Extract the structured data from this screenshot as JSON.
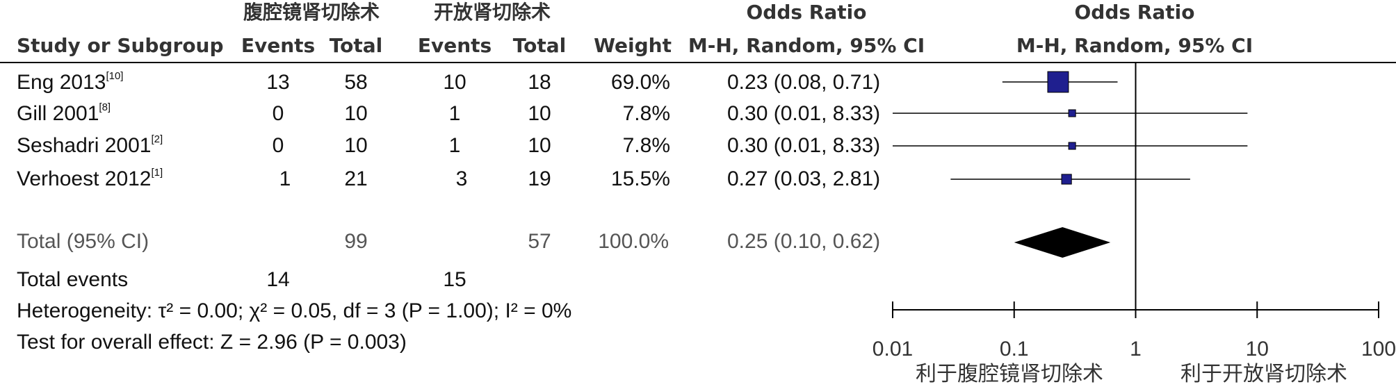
{
  "header": {
    "group1": "腹腔镜肾切除术",
    "group2": "开放肾切除术",
    "odds_ratio_col": "Odds Ratio",
    "odds_ratio_plot": "Odds Ratio",
    "study_col": "Study or Subgroup",
    "events1": "Events",
    "total1": "Total",
    "events2": "Events",
    "total2": "Total",
    "weight": "Weight",
    "method_col": "M-H, Random, 95% CI",
    "method_plot": "M-H, Random, 95% CI"
  },
  "studies": [
    {
      "name": "Eng 2013",
      "ref": "[10]",
      "events1": "13",
      "total1": "58",
      "events2": "10",
      "total2": "18",
      "weight": "69.0%",
      "ci_text": "0.23 (0.08, 0.71)"
    },
    {
      "name": "Gill 2001",
      "ref": "[8]",
      "events1": "0",
      "total1": "10",
      "events2": "1",
      "total2": "10",
      "weight": "7.8%",
      "ci_text": "0.30 (0.01, 8.33)"
    },
    {
      "name": "Seshadri 2001",
      "ref": "[2]",
      "events1": "0",
      "total1": "10",
      "events2": "1",
      "total2": "10",
      "weight": "7.8%",
      "ci_text": "0.30 (0.01, 8.33)"
    },
    {
      "name": "Verhoest 2012",
      "ref": "[1]",
      "events1": "1",
      "total1": "21",
      "events2": "3",
      "total2": "19",
      "weight": "15.5%",
      "ci_text": "0.27 (0.03, 2.81)"
    }
  ],
  "total": {
    "label": "Total (95% CI)",
    "total1": "99",
    "total2": "57",
    "weight": "100.0%",
    "ci_text": "0.25 (0.10, 0.62)"
  },
  "events_row": {
    "label": "Total events",
    "events1": "14",
    "events2": "15"
  },
  "heterogeneity": "Heterogeneity: τ² = 0.00; χ² = 0.05, df = 3 (P = 1.00); I² = 0%",
  "overall_effect": "Test for overall effect: Z = 2.96 (P = 0.003)",
  "footer": {
    "favours_left": "利于腹腔镜肾切除术",
    "favours_right": "利于开放肾切除术"
  },
  "colors": {
    "marker": "#1f1f8f",
    "diamond": "#000000",
    "line": "#000000"
  },
  "chart_data": {
    "type": "forest",
    "x_scale": "log",
    "xlim": [
      0.01,
      100
    ],
    "reference_line": 1,
    "ticks": [
      {
        "value": 0.01,
        "label": "0.01"
      },
      {
        "value": 0.1,
        "label": "0.1"
      },
      {
        "value": 1,
        "label": "1"
      },
      {
        "value": 10,
        "label": "10"
      },
      {
        "value": 100,
        "label": "100"
      }
    ],
    "studies": [
      {
        "estimate": 0.23,
        "lower": 0.08,
        "upper": 0.71,
        "weight": 69.0
      },
      {
        "estimate": 0.3,
        "lower": 0.01,
        "upper": 8.33,
        "weight": 7.8
      },
      {
        "estimate": 0.3,
        "lower": 0.01,
        "upper": 8.33,
        "weight": 7.8
      },
      {
        "estimate": 0.27,
        "lower": 0.03,
        "upper": 2.81,
        "weight": 15.5
      }
    ],
    "pooled": {
      "estimate": 0.25,
      "lower": 0.1,
      "upper": 0.62
    }
  }
}
